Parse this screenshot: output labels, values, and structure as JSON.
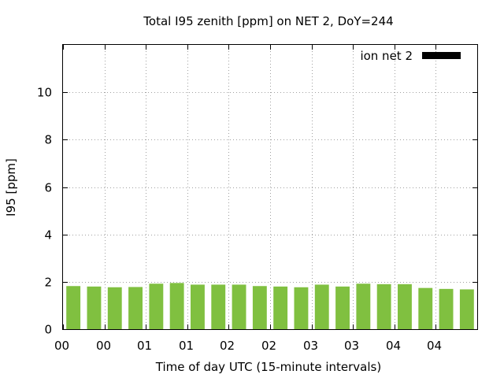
{
  "chart_data": {
    "type": "bar",
    "title": "Total I95 zenith [ppm] on NET 2, DoY=244",
    "xlabel": "Time of day UTC (15-minute intervals)",
    "ylabel": "I95 [ppm]",
    "ylim": [
      0,
      12
    ],
    "yticks": [
      0,
      2,
      4,
      6,
      8,
      10
    ],
    "xtick_labels": [
      "00",
      "00",
      "01",
      "01",
      "02",
      "02",
      "03",
      "03",
      "04",
      "04"
    ],
    "grid": true,
    "legend_position": "top-right",
    "series": [
      {
        "name": "ion net 2",
        "color": "#80c040",
        "legend_color": "#000000",
        "values": [
          1.82,
          1.8,
          1.77,
          1.78,
          1.92,
          1.95,
          1.88,
          1.88,
          1.88,
          1.82,
          1.8,
          1.77,
          1.88,
          1.8,
          1.92,
          1.9,
          1.9,
          1.74,
          1.7,
          1.68
        ]
      }
    ]
  }
}
